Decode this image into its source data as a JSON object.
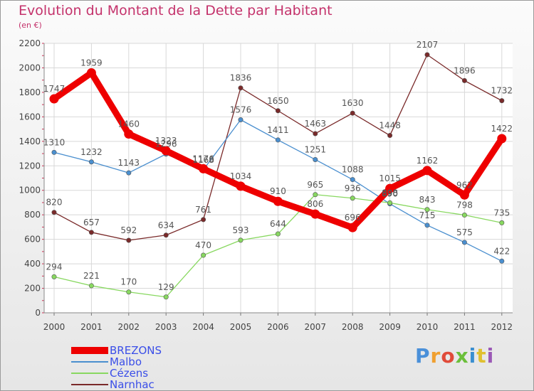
{
  "header": {
    "title": "Evolution du Montant de la Dette par Habitant",
    "subtitle": "(en €)"
  },
  "logo": {
    "text": "Proxiti",
    "colors": [
      "#4a90d9",
      "#f0a030",
      "#e04b3a",
      "#6bbf3a",
      "#3a8fd0",
      "#e0c030",
      "#9b59b6"
    ]
  },
  "chart_data": {
    "type": "line",
    "title": "Evolution du Montant de la Dette par Habitant",
    "subtitle": "(en €)",
    "xlabel": "",
    "ylabel": "",
    "x": [
      "2000",
      "2001",
      "2002",
      "2003",
      "2004",
      "2005",
      "2006",
      "2007",
      "2008",
      "2009",
      "2010",
      "2011",
      "2012"
    ],
    "ylim": [
      0,
      2200
    ],
    "yticks": [
      "0",
      "200",
      "400",
      "600",
      "800",
      "1000",
      "1200",
      "1400",
      "1600",
      "1800",
      "2000",
      "2200"
    ],
    "grid": true,
    "legend_position": "bottom-left",
    "series": [
      {
        "name": "BREZONS",
        "color": "#ee0000",
        "label_color": "#3a4ee8",
        "values": [
          1747,
          1959,
          1460,
          1323,
          1176,
          1034,
          910,
          806,
          696,
          1015,
          1162,
          962,
          1422
        ],
        "labels": [
          "1747",
          "1959",
          "1460",
          "1323",
          "1176",
          "1034",
          "910",
          "806",
          "696",
          "1015",
          "1162",
          "962",
          "1422"
        ]
      },
      {
        "name": "Malbo",
        "color": "#4a8fcf",
        "label_color": "#4a8fcf",
        "values": [
          1310,
          1232,
          1143,
          1296,
          1168,
          1576,
          1411,
          1251,
          1088,
          890,
          715,
          575,
          422
        ],
        "labels": [
          "1310",
          "1232",
          "1143",
          "1296",
          "1168",
          "1576",
          "1411",
          "1251",
          "1088",
          "890",
          "715",
          "575",
          "422"
        ]
      },
      {
        "name": "Cézens",
        "color": "#88d860",
        "label_color": "#88d860",
        "values": [
          294,
          221,
          170,
          129,
          470,
          593,
          644,
          965,
          936,
          898,
          843,
          798,
          735
        ],
        "labels": [
          "294",
          "221",
          "170",
          "129",
          "470",
          "593",
          "644",
          "965",
          "936",
          "898",
          "843",
          "798",
          "735"
        ]
      },
      {
        "name": "Narnhac",
        "color": "#7a2a2a",
        "label_color": "#8a3a3a",
        "values": [
          820,
          657,
          592,
          634,
          761,
          1836,
          1650,
          1463,
          1630,
          1448,
          2107,
          1896,
          1732
        ],
        "labels": [
          "820",
          "657",
          "592",
          "634",
          "761",
          "1836",
          "1650",
          "1463",
          "1630",
          "1448",
          "2107",
          "1896",
          "1732"
        ]
      }
    ]
  }
}
